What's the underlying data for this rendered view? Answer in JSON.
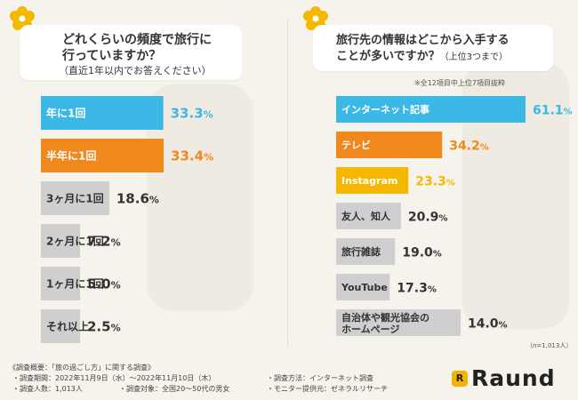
{
  "colors": {
    "blue": "#3cb8e6",
    "orange": "#f0881e",
    "yellow": "#f5b800",
    "gray": "#cfcfcf",
    "label_light": "#ffffff",
    "label_dark": "#333333"
  },
  "left_question": {
    "line1": "どれくらいの頻度で旅行に",
    "line2": "行っていますか？",
    "line3": "（直近1年以内でお答えください）"
  },
  "right_question": {
    "line1": "旅行先の情報はどこから入手する",
    "line2": "ことが多いですか？",
    "line2_small": "（上位3つまで）"
  },
  "right_note": "※全12項目中上位7項目抜粋",
  "sample_size": "（n=1,013人）",
  "chart_data": [
    {
      "type": "bar",
      "title": "どれくらいの頻度で旅行に行っていますか？（直近1年以内でお答えください）",
      "categories": [
        "年に1回",
        "半年に1回",
        "3ヶ月に1回",
        "2ヶ月に1回",
        "1ヶ月に1回",
        "それ以上"
      ],
      "values": [
        33.3,
        33.4,
        18.6,
        7.2,
        5.0,
        2.5
      ],
      "value_labels": [
        "33.3",
        "33.4",
        "18.6",
        "7.2",
        "5.0",
        "2.5"
      ],
      "unit": "%",
      "bar_colors": [
        "#3cb8e6",
        "#f0881e",
        "#cfcfcf",
        "#cfcfcf",
        "#cfcfcf",
        "#cfcfcf"
      ],
      "label_colors": [
        "#ffffff",
        "#ffffff",
        "#333333",
        "#333333",
        "#333333",
        "#333333"
      ],
      "value_colors": [
        "#3cb8e6",
        "#f0881e",
        "#333333",
        "#333333",
        "#333333",
        "#333333"
      ],
      "xlim": [
        0,
        60
      ]
    },
    {
      "type": "bar",
      "title": "旅行先の情報はどこから入手することが多いですか？（上位3つまで）",
      "categories": [
        "インターネット記事",
        "テレビ",
        "Instagram",
        "友人、知人",
        "旅行雑誌",
        "YouTube",
        [
          "自治体や観光協会の",
          "ホームページ"
        ]
      ],
      "values": [
        61.1,
        34.2,
        23.3,
        20.9,
        19.0,
        17.3,
        14.0
      ],
      "value_labels": [
        "61.1",
        "34.2",
        "23.3",
        "20.9",
        "19.0",
        "17.3",
        "14.0"
      ],
      "unit": "%",
      "bar_colors": [
        "#3cb8e6",
        "#f0881e",
        "#f5b800",
        "#cfcfcf",
        "#cfcfcf",
        "#cfcfcf",
        "#cfcfcf"
      ],
      "label_colors": [
        "#ffffff",
        "#ffffff",
        "#ffffff",
        "#333333",
        "#333333",
        "#333333",
        "#333333"
      ],
      "value_colors": [
        "#3cb8e6",
        "#f0881e",
        "#f5b800",
        "#333333",
        "#333333",
        "#333333",
        "#333333"
      ],
      "xlim": [
        0,
        70
      ]
    }
  ],
  "footer": {
    "header": "《調査概要：「旅の過ごし方」に関する調査》",
    "period": "・調査期間：2022年11月9日（水）〜2022年11月10日（木）",
    "method": "・調査方法：インターネット調査",
    "people": "・調査人数：1,013人",
    "target": "・調査対象：全国20〜50代の男女",
    "monitor": "・モニター提供元：ゼネラルリサーチ"
  },
  "logo": {
    "icon_letter": "R",
    "text": "Raund"
  }
}
